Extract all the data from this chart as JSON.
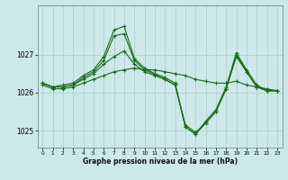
{
  "background_color": "#cce8e8",
  "grid_color": "#aacece",
  "line_color": "#1a6b1a",
  "marker_color": "#1a6b1a",
  "xlabel": "Graphe pression niveau de la mer (hPa)",
  "xlim": [
    -0.5,
    23.5
  ],
  "ylim": [
    1024.55,
    1028.3
  ],
  "yticks": [
    1025,
    1026,
    1027
  ],
  "xticks": [
    0,
    1,
    2,
    3,
    4,
    5,
    6,
    7,
    8,
    9,
    10,
    11,
    12,
    13,
    14,
    15,
    16,
    17,
    18,
    19,
    20,
    21,
    22,
    23
  ],
  "series": [
    [
      1026.2,
      1026.1,
      1026.1,
      1026.15,
      1026.25,
      1026.35,
      1026.45,
      1026.55,
      1026.6,
      1026.65,
      1026.6,
      1026.6,
      1026.55,
      1026.5,
      1026.45,
      1026.35,
      1026.3,
      1026.25,
      1026.25,
      1026.3,
      1026.2,
      1026.15,
      1026.1,
      1026.05
    ],
    [
      1026.25,
      1026.15,
      1026.15,
      1026.2,
      1026.35,
      1026.5,
      1026.75,
      1026.95,
      1027.1,
      1026.75,
      1026.55,
      1026.45,
      1026.35,
      1026.2,
      1025.15,
      1024.95,
      1025.2,
      1025.5,
      1026.1,
      1026.95,
      1026.55,
      1026.15,
      1026.05,
      1026.05
    ],
    [
      1026.25,
      1026.15,
      1026.15,
      1026.2,
      1026.4,
      1026.55,
      1026.85,
      1027.5,
      1027.55,
      1026.85,
      1026.6,
      1026.48,
      1026.35,
      1026.2,
      1025.1,
      1024.9,
      1025.2,
      1025.5,
      1026.1,
      1027.0,
      1026.55,
      1026.15,
      1026.05,
      1026.05
    ],
    [
      1026.25,
      1026.15,
      1026.2,
      1026.25,
      1026.45,
      1026.6,
      1026.95,
      1027.65,
      1027.75,
      1026.9,
      1026.65,
      1026.5,
      1026.4,
      1026.25,
      1025.1,
      1024.9,
      1025.25,
      1025.55,
      1026.15,
      1027.05,
      1026.6,
      1026.2,
      1026.05,
      1026.05
    ]
  ]
}
